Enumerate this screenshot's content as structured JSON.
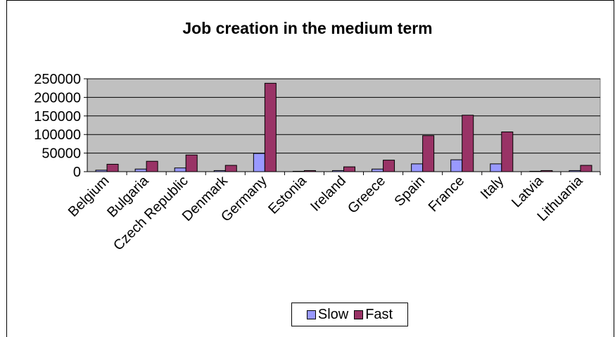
{
  "chart_data": {
    "type": "bar",
    "title": "Job creation in the medium term",
    "xlabel": "",
    "ylabel": "",
    "ylim": [
      0,
      250000
    ],
    "yticks": [
      0,
      50000,
      100000,
      150000,
      200000,
      250000
    ],
    "ytick_labels": [
      "0",
      "50000",
      "100000",
      "150000",
      "200000",
      "250000"
    ],
    "grid": true,
    "legend_position": "bottom",
    "plot_background": "#c0c0c0",
    "categories": [
      "Belgium",
      "Bulgaria",
      "Czech Republic",
      "Denmark",
      "Germany",
      "Estonia",
      "Ireland",
      "Greece",
      "Spain",
      "France",
      "Italy",
      "Latvia",
      "Lithuania"
    ],
    "series": [
      {
        "name": "Slow",
        "color": "#9999ff",
        "values": [
          4000,
          7000,
          10000,
          3000,
          49000,
          1000,
          3000,
          7000,
          21000,
          32000,
          21000,
          1000,
          3000
        ]
      },
      {
        "name": "Fast",
        "color": "#993366",
        "values": [
          20000,
          28000,
          45000,
          17000,
          238000,
          3000,
          13000,
          31000,
          97000,
          152000,
          107000,
          3000,
          17000
        ]
      }
    ]
  }
}
